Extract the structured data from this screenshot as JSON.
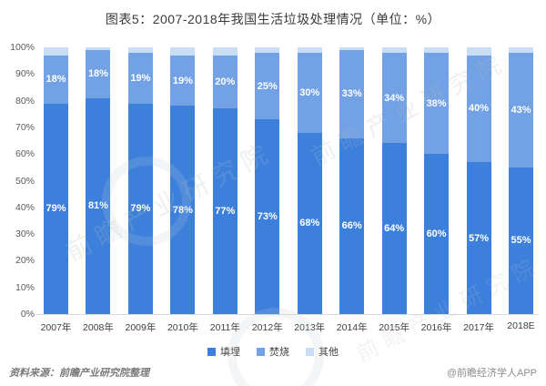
{
  "title": "图表5：2007-2018年我国生活垃圾处理情况（单位：%）",
  "chart_data": {
    "type": "bar",
    "stacked": true,
    "unit": "%",
    "title": "图表5：2007-2018年我国生活垃圾处理情况（单位：%）",
    "categories": [
      "2007年",
      "2008年",
      "2009年",
      "2010年",
      "2011年",
      "2012年",
      "2013年",
      "2014年",
      "2015年",
      "2016年",
      "2017年",
      "2018E"
    ],
    "series": [
      {
        "name": "填埋",
        "color": "#3d80dc",
        "show_labels": true,
        "values": [
          79,
          81,
          79,
          78,
          77,
          73,
          68,
          66,
          64,
          60,
          57,
          55
        ]
      },
      {
        "name": "焚烧",
        "color": "#72a1e5",
        "show_labels": true,
        "values": [
          18,
          18,
          19,
          19,
          20,
          25,
          30,
          33,
          34,
          38,
          40,
          43
        ]
      },
      {
        "name": "其他",
        "color": "#c9def5",
        "show_labels": false,
        "values": [
          3,
          1,
          2,
          3,
          3,
          2,
          2,
          1,
          2,
          2,
          3,
          2
        ]
      }
    ],
    "ylim": [
      0,
      100
    ],
    "ytick_labels": [
      "100%",
      "90%",
      "80%",
      "70%",
      "60%",
      "50%",
      "40%",
      "30%",
      "20%",
      "10%",
      "0%"
    ],
    "grid": false,
    "legend_position": "bottom"
  },
  "footer": {
    "source": "资料来源：前瞻产业研究院整理",
    "credit": "@前瞻经济学人APP"
  },
  "watermark": {
    "text": "前瞻产业研究院"
  }
}
